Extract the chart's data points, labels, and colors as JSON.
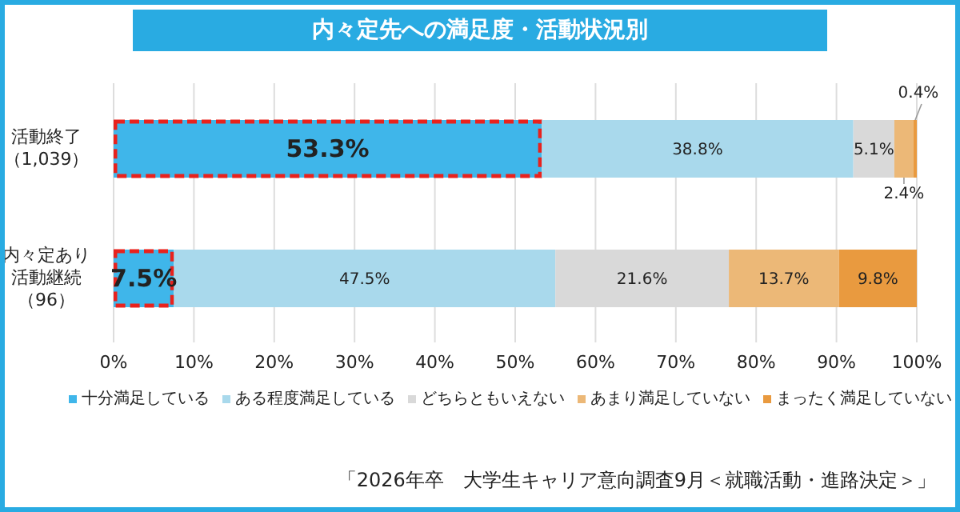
{
  "chart_data": {
    "type": "bar",
    "orientation": "horizontal",
    "stacked": true,
    "title": "内々定先への満足度・活動状況別",
    "categories": [
      "活動終了（1,039）",
      "内々定あり活動継続（96）"
    ],
    "series": [
      {
        "name": "十分満足している",
        "color": "#3fb6ea",
        "values": [
          53.3,
          7.5
        ]
      },
      {
        "name": "ある程度満足している",
        "color": "#a9d9ec",
        "values": [
          38.8,
          47.5
        ]
      },
      {
        "name": "どちらともいえない",
        "color": "#d9d9d9",
        "values": [
          5.1,
          21.6
        ]
      },
      {
        "name": "あまり満足していない",
        "color": "#ecb877",
        "values": [
          2.4,
          13.7
        ]
      },
      {
        "name": "まったく満足していない",
        "color": "#e99a3f",
        "values": [
          0.4,
          9.8
        ]
      }
    ],
    "xlim": [
      0,
      100
    ],
    "xticks": [
      {
        "value": 0,
        "label": "0%"
      },
      {
        "value": 10,
        "label": "10%"
      },
      {
        "value": 20,
        "label": "20%"
      },
      {
        "value": 30,
        "label": "30%"
      },
      {
        "value": 40,
        "label": "40%"
      },
      {
        "value": 50,
        "label": "50%"
      },
      {
        "value": 60,
        "label": "60%"
      },
      {
        "value": 70,
        "label": "70%"
      },
      {
        "value": 80,
        "label": "80%"
      },
      {
        "value": 90,
        "label": "90%"
      },
      {
        "value": 100,
        "label": "100%"
      }
    ],
    "value_labels": [
      [
        "53.3%",
        "7.5%"
      ],
      [
        "38.8%",
        "47.5%"
      ],
      [
        "5.1%",
        "21.6%"
      ],
      [
        "2.4%",
        "13.7%"
      ],
      [
        "0.4%",
        "9.8%"
      ]
    ],
    "grid": "x",
    "legend": "bottom",
    "annotations": [
      "「2026年卒　大学生キャリア意向調査9月＜就職活動・進路決定＞」"
    ]
  }
}
